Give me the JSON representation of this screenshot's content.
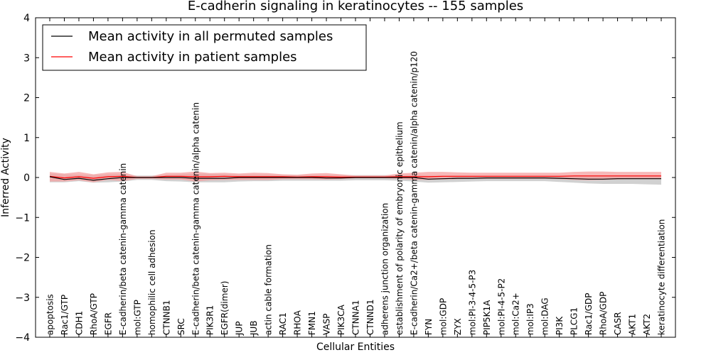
{
  "chart_data": {
    "type": "line",
    "title": "E-cadherin signaling in keratinocytes -- 155 samples",
    "xlabel": "Cellular Entities",
    "ylabel": "Inferred Activity",
    "ylim": [
      -4,
      4
    ],
    "yticks": [
      -4,
      -3,
      -2,
      -1,
      0,
      1,
      2,
      3,
      4
    ],
    "categories": [
      "apoptosis",
      "Rac1/GTP",
      "CDH1",
      "RhoA/GTP",
      "EGFR",
      "E-cadherin/beta catenin-gamma catenin",
      "mol:GTP",
      "homophilic cell adhesion",
      "CTNNB1",
      "SRC",
      "E-cadherin/beta catenin-gamma catenin/alpha catenin",
      "PIK3R1",
      "EGFR(dimer)",
      "JUP",
      "JUB",
      "actin cable formation",
      "RAC1",
      "RHOA",
      "FMN1",
      "VASP",
      "PIK3CA",
      "CTNNA1",
      "CTNND1",
      "adherens junction organization",
      "establishment of polarity of embryonic epithelium",
      "E-cadherin/Ca2+/beta catenin-gamma catenin/alpha catenin/p120",
      "FYN",
      "mol:GDP",
      "ZYX",
      "mol:PI-3-4-5-P3",
      "PIP5K1A",
      "mol:PI-4-5-P2",
      "mol:Ca2+",
      "mol:IP3",
      "mol:DAG",
      "PI3K",
      "PLCG1",
      "Rac1/GDP",
      "RhoA/GDP",
      "CASR",
      "AKT1",
      "AKT2",
      "keratinocyte differentiation"
    ],
    "legend": {
      "position": "upper-left"
    },
    "series": [
      {
        "name": "Mean activity in all permuted samples",
        "color": "#000000",
        "values": [
          0.02,
          -0.05,
          -0.02,
          -0.07,
          -0.03,
          0.0,
          0.0,
          0.0,
          0.0,
          0.0,
          -0.02,
          -0.02,
          -0.02,
          0.0,
          0.0,
          0.0,
          0.0,
          0.0,
          0.0,
          -0.01,
          -0.01,
          0.0,
          0.0,
          0.0,
          0.0,
          0.0,
          -0.04,
          -0.03,
          -0.02,
          -0.02,
          -0.01,
          -0.01,
          -0.01,
          -0.01,
          -0.01,
          -0.02,
          -0.03,
          -0.04,
          -0.04,
          -0.03,
          -0.03,
          -0.03,
          -0.03
        ],
        "band": {
          "color": "#bdbdbd",
          "lower": [
            -0.12,
            -0.12,
            -0.09,
            -0.13,
            -0.12,
            -0.1,
            -0.06,
            -0.06,
            -0.09,
            -0.1,
            -0.12,
            -0.12,
            -0.12,
            -0.1,
            -0.09,
            -0.09,
            -0.08,
            -0.08,
            -0.08,
            -0.08,
            -0.08,
            -0.07,
            -0.07,
            -0.07,
            -0.08,
            -0.1,
            -0.13,
            -0.12,
            -0.11,
            -0.1,
            -0.09,
            -0.09,
            -0.09,
            -0.09,
            -0.09,
            -0.11,
            -0.13,
            -0.15,
            -0.16,
            -0.16,
            -0.16,
            -0.17,
            -0.18
          ],
          "upper": [
            0.1,
            0.08,
            0.07,
            0.06,
            0.08,
            0.08,
            0.05,
            0.05,
            0.07,
            0.08,
            0.1,
            0.09,
            0.08,
            0.07,
            0.07,
            0.07,
            0.06,
            0.06,
            0.06,
            0.06,
            0.06,
            0.06,
            0.06,
            0.06,
            0.06,
            0.07,
            0.05,
            0.05,
            0.05,
            0.05,
            0.05,
            0.05,
            0.05,
            0.05,
            0.05,
            0.05,
            0.05,
            0.05,
            0.05,
            0.05,
            0.05,
            0.05,
            0.05
          ]
        }
      },
      {
        "name": "Mean activity in patient samples",
        "color": "#ff0000",
        "values": [
          0.03,
          -0.01,
          0.02,
          -0.02,
          0.02,
          0.03,
          0.0,
          0.0,
          0.03,
          0.03,
          0.02,
          0.02,
          0.03,
          0.02,
          0.02,
          0.02,
          0.02,
          0.01,
          0.02,
          0.02,
          0.01,
          0.01,
          0.01,
          0.01,
          0.02,
          0.02,
          0.02,
          0.03,
          0.03,
          0.03,
          0.03,
          0.03,
          0.03,
          0.03,
          0.03,
          0.03,
          0.04,
          0.04,
          0.04,
          0.04,
          0.04,
          0.04,
          0.04
        ],
        "band": {
          "color": "#f4a0a0",
          "lower": [
            -0.1,
            -0.1,
            -0.07,
            -0.12,
            -0.06,
            -0.09,
            -0.03,
            -0.03,
            -0.05,
            -0.05,
            -0.1,
            -0.07,
            -0.06,
            -0.06,
            -0.06,
            -0.06,
            -0.04,
            -0.04,
            -0.04,
            -0.05,
            -0.04,
            -0.02,
            -0.02,
            -0.02,
            -0.03,
            -0.06,
            -0.06,
            -0.05,
            -0.04,
            -0.03,
            -0.03,
            -0.03,
            -0.03,
            -0.03,
            -0.03,
            -0.04,
            -0.06,
            -0.07,
            -0.06,
            -0.05,
            -0.04,
            -0.04,
            -0.04
          ],
          "upper": [
            0.14,
            0.1,
            0.14,
            0.08,
            0.13,
            0.14,
            0.03,
            0.03,
            0.12,
            0.12,
            0.15,
            0.11,
            0.12,
            0.1,
            0.12,
            0.11,
            0.08,
            0.07,
            0.1,
            0.11,
            0.08,
            0.05,
            0.05,
            0.05,
            0.1,
            0.12,
            0.14,
            0.14,
            0.13,
            0.12,
            0.12,
            0.12,
            0.12,
            0.12,
            0.12,
            0.12,
            0.14,
            0.15,
            0.15,
            0.14,
            0.14,
            0.14,
            0.14
          ]
        }
      }
    ]
  }
}
